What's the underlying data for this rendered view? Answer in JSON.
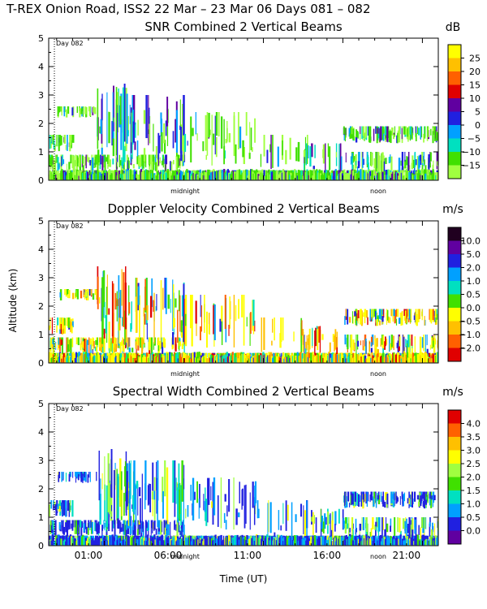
{
  "figure": {
    "title": "T-REX Onion Road, ISS2  22 Mar – 23 Mar 06 Days 081 – 082",
    "ylabel": "Altitude (km)",
    "xlabel": "Time (UT)"
  },
  "chart_data": [
    {
      "type": "heatmap",
      "title": "SNR Combined 2 Vertical Beams",
      "units": "dB",
      "x_range_hours_ut": [
        22.5,
        47.0
      ],
      "ylim": [
        0,
        5
      ],
      "yticks": [
        "0",
        "1",
        "2",
        "3",
        "4",
        "5"
      ],
      "xticks": [],
      "annotations": {
        "day_marker": "Day 082",
        "midnight": "midnight",
        "noon": "noon"
      },
      "colorbar": {
        "labels": [
          "25",
          "20",
          "15",
          "10",
          "5",
          "0",
          "−5",
          "−10",
          "−15"
        ],
        "colors": [
          "#ffff00",
          "#ffc000",
          "#ff6000",
          "#e00000",
          "#6000a0",
          "#2020e0",
          "#00a0ff",
          "#00e0c0",
          "#40e000",
          "#a0ff40"
        ]
      }
    },
    {
      "type": "heatmap",
      "title": "Doppler Velocity Combined 2 Vertical Beams",
      "units": "m/s",
      "x_range_hours_ut": [
        22.5,
        47.0
      ],
      "ylim": [
        0,
        5
      ],
      "yticks": [
        "0",
        "1",
        "2",
        "3",
        "4",
        "5"
      ],
      "xticks": [],
      "annotations": {
        "day_marker": "Day 082",
        "midnight": "midnight",
        "noon": "noon"
      },
      "colorbar": {
        "labels": [
          "10.0",
          "5.0",
          "2.0",
          "1.0",
          "0.5",
          "0.0",
          "−0.5",
          "−1.0",
          "−2.0"
        ],
        "colors": [
          "#200020",
          "#6000a0",
          "#2020e0",
          "#00a0ff",
          "#00e0c0",
          "#40e000",
          "#ffff00",
          "#ffc000",
          "#ff6000",
          "#e00000"
        ]
      }
    },
    {
      "type": "heatmap",
      "title": "Spectral Width Combined 2 Vertical Beams",
      "units": "m/s",
      "x_range_hours_ut": [
        22.5,
        47.0
      ],
      "ylim": [
        0,
        5
      ],
      "yticks": [
        "0",
        "1",
        "2",
        "3",
        "4",
        "5"
      ],
      "xticks": [
        "01:00",
        "06:00",
        "11:00",
        "16:00",
        "21:00"
      ],
      "annotations": {
        "day_marker": "Day 082",
        "midnight": "midnight",
        "noon": "noon"
      },
      "colorbar": {
        "labels": [
          "4.0",
          "3.5",
          "3.0",
          "2.5",
          "2.0",
          "1.5",
          "1.0",
          "0.5",
          "0.0"
        ],
        "colors": [
          "#e00000",
          "#ff6000",
          "#ffc000",
          "#ffff00",
          "#a0ff40",
          "#40e000",
          "#00e0c0",
          "#00a0ff",
          "#2020e0",
          "#6000a0"
        ]
      }
    }
  ]
}
